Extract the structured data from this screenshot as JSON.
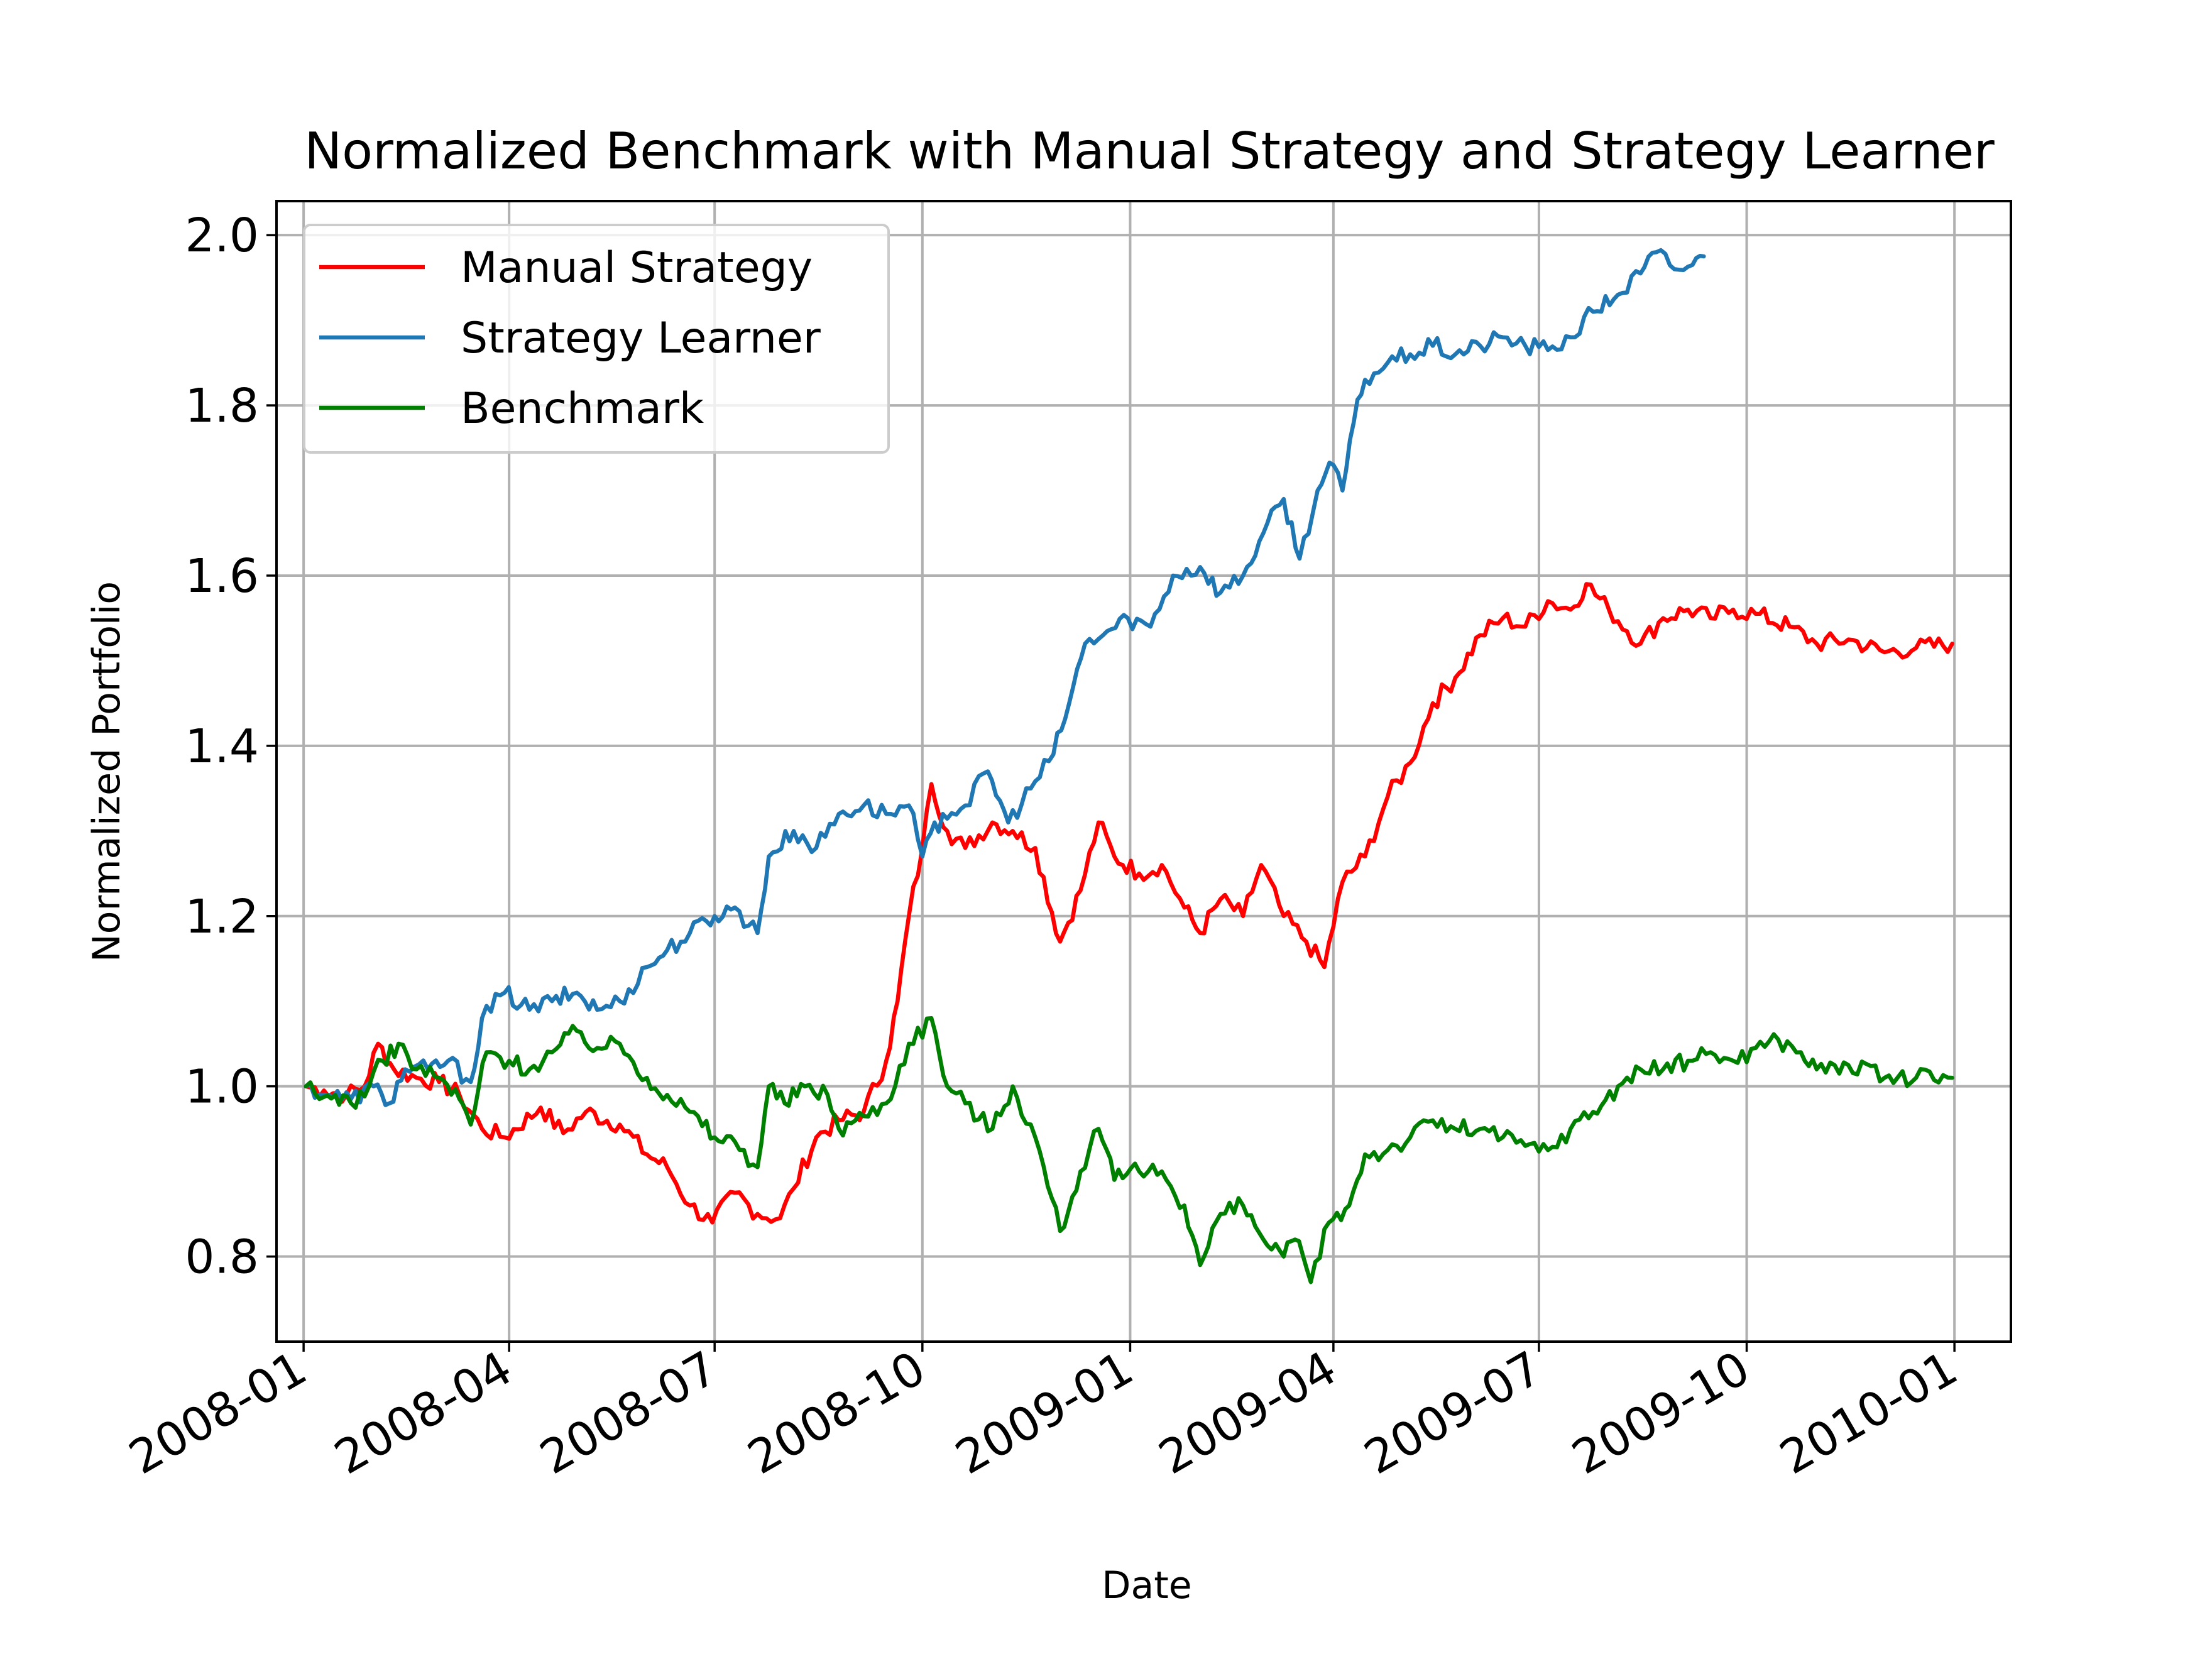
{
  "chart_data": {
    "type": "line",
    "title": "Normalized Benchmark with Manual Strategy and Strategy Learner",
    "xlabel": "Date",
    "ylabel": "Normalized Portfolio",
    "xlim": [
      "2007-12-20",
      "2010-01-26"
    ],
    "ylim": [
      0.7,
      2.04
    ],
    "x_ticks": [
      "2008-01",
      "2008-04",
      "2008-07",
      "2008-10",
      "2009-01",
      "2009-04",
      "2009-07",
      "2009-10",
      "2010-01"
    ],
    "y_ticks": [
      "0.8",
      "1.0",
      "1.2",
      "1.4",
      "1.6",
      "1.8",
      "2.0"
    ],
    "grid": true,
    "legend_position": "top-left",
    "series": [
      {
        "name": "Manual Strategy",
        "color": "#ff0000",
        "points": [
          [
            "2008-01-02",
            1.0
          ],
          [
            "2008-01-10",
            0.995
          ],
          [
            "2008-01-20",
            0.99
          ],
          [
            "2008-01-28",
            1.0
          ],
          [
            "2008-02-03",
            1.05
          ],
          [
            "2008-02-10",
            1.02
          ],
          [
            "2008-02-20",
            1.01
          ],
          [
            "2008-03-01",
            1.005
          ],
          [
            "2008-03-10",
            0.99
          ],
          [
            "2008-03-20",
            0.95
          ],
          [
            "2008-03-30",
            0.94
          ],
          [
            "2008-04-15",
            0.975
          ],
          [
            "2008-04-25",
            0.945
          ],
          [
            "2008-05-05",
            0.97
          ],
          [
            "2008-05-20",
            0.955
          ],
          [
            "2008-06-01",
            0.92
          ],
          [
            "2008-06-10",
            0.905
          ],
          [
            "2008-06-20",
            0.86
          ],
          [
            "2008-06-30",
            0.84
          ],
          [
            "2008-07-10",
            0.875
          ],
          [
            "2008-07-20",
            0.85
          ],
          [
            "2008-07-30",
            0.845
          ],
          [
            "2008-08-05",
            0.88
          ],
          [
            "2008-08-15",
            0.94
          ],
          [
            "2008-08-25",
            0.96
          ],
          [
            "2008-09-05",
            0.97
          ],
          [
            "2008-09-15",
            1.03
          ],
          [
            "2008-09-20",
            1.1
          ],
          [
            "2008-09-25",
            1.2
          ],
          [
            "2008-10-01",
            1.28
          ],
          [
            "2008-10-05",
            1.355
          ],
          [
            "2008-10-12",
            1.3
          ],
          [
            "2008-10-20",
            1.28
          ],
          [
            "2008-11-01",
            1.31
          ],
          [
            "2008-11-10",
            1.3
          ],
          [
            "2008-11-20",
            1.28
          ],
          [
            "2008-12-01",
            1.17
          ],
          [
            "2008-12-10",
            1.23
          ],
          [
            "2008-12-18",
            1.31
          ],
          [
            "2008-12-25",
            1.27
          ],
          [
            "2009-01-05",
            1.25
          ],
          [
            "2009-01-15",
            1.26
          ],
          [
            "2009-01-25",
            1.21
          ],
          [
            "2009-02-01",
            1.18
          ],
          [
            "2009-02-10",
            1.22
          ],
          [
            "2009-02-20",
            1.2
          ],
          [
            "2009-02-28",
            1.26
          ],
          [
            "2009-03-10",
            1.2
          ],
          [
            "2009-03-20",
            1.17
          ],
          [
            "2009-03-28",
            1.14
          ],
          [
            "2009-04-05",
            1.24
          ],
          [
            "2009-04-15",
            1.27
          ],
          [
            "2009-04-25",
            1.34
          ],
          [
            "2009-05-05",
            1.38
          ],
          [
            "2009-05-15",
            1.45
          ],
          [
            "2009-05-25",
            1.48
          ],
          [
            "2009-06-05",
            1.53
          ],
          [
            "2009-06-15",
            1.55
          ],
          [
            "2009-06-25",
            1.54
          ],
          [
            "2009-07-05",
            1.57
          ],
          [
            "2009-07-15",
            1.56
          ],
          [
            "2009-07-22",
            1.59
          ],
          [
            "2009-08-01",
            1.56
          ],
          [
            "2009-08-15",
            1.52
          ],
          [
            "2009-08-25",
            1.55
          ],
          [
            "2009-09-05",
            1.56
          ],
          [
            "2009-09-15",
            1.55
          ],
          [
            "2009-09-25",
            1.56
          ],
          [
            "2009-10-05",
            1.555
          ],
          [
            "2009-10-20",
            1.54
          ],
          [
            "2009-11-01",
            1.52
          ],
          [
            "2009-11-15",
            1.525
          ],
          [
            "2009-12-01",
            1.51
          ],
          [
            "2009-12-15",
            1.515
          ],
          [
            "2009-12-31",
            1.52
          ]
        ]
      },
      {
        "name": "Strategy Learner",
        "color": "#1f77b4",
        "points": [
          [
            "2008-01-02",
            1.0
          ],
          [
            "2008-01-12",
            0.99
          ],
          [
            "2008-01-22",
            0.985
          ],
          [
            "2008-02-01",
            1.0
          ],
          [
            "2008-02-08",
            0.98
          ],
          [
            "2008-02-15",
            1.02
          ],
          [
            "2008-02-25",
            1.02
          ],
          [
            "2008-03-05",
            1.03
          ],
          [
            "2008-03-15",
            1.005
          ],
          [
            "2008-03-20",
            1.08
          ],
          [
            "2008-03-30",
            1.11
          ],
          [
            "2008-04-10",
            1.09
          ],
          [
            "2008-04-20",
            1.1
          ],
          [
            "2008-05-01",
            1.11
          ],
          [
            "2008-05-10",
            1.09
          ],
          [
            "2008-05-20",
            1.1
          ],
          [
            "2008-06-01",
            1.14
          ],
          [
            "2008-06-10",
            1.16
          ],
          [
            "2008-06-20",
            1.18
          ],
          [
            "2008-07-01",
            1.2
          ],
          [
            "2008-07-10",
            1.21
          ],
          [
            "2008-07-20",
            1.18
          ],
          [
            "2008-07-25",
            1.27
          ],
          [
            "2008-08-05",
            1.3
          ],
          [
            "2008-08-15",
            1.28
          ],
          [
            "2008-08-25",
            1.32
          ],
          [
            "2008-09-05",
            1.33
          ],
          [
            "2008-09-15",
            1.32
          ],
          [
            "2008-09-25",
            1.33
          ],
          [
            "2008-10-01",
            1.27
          ],
          [
            "2008-10-10",
            1.32
          ],
          [
            "2008-10-20",
            1.33
          ],
          [
            "2008-10-30",
            1.37
          ],
          [
            "2008-11-08",
            1.31
          ],
          [
            "2008-11-18",
            1.35
          ],
          [
            "2008-11-28",
            1.39
          ],
          [
            "2008-12-05",
            1.45
          ],
          [
            "2008-12-12",
            1.52
          ],
          [
            "2008-12-20",
            1.53
          ],
          [
            "2008-12-31",
            1.55
          ],
          [
            "2009-01-10",
            1.54
          ],
          [
            "2009-01-20",
            1.6
          ],
          [
            "2009-02-01",
            1.61
          ],
          [
            "2009-02-10",
            1.58
          ],
          [
            "2009-02-20",
            1.6
          ],
          [
            "2009-03-01",
            1.65
          ],
          [
            "2009-03-10",
            1.69
          ],
          [
            "2009-03-17",
            1.62
          ],
          [
            "2009-03-25",
            1.7
          ],
          [
            "2009-04-01",
            1.73
          ],
          [
            "2009-04-05",
            1.7
          ],
          [
            "2009-04-10",
            1.78
          ],
          [
            "2009-04-15",
            1.83
          ],
          [
            "2009-04-25",
            1.85
          ],
          [
            "2009-05-05",
            1.86
          ],
          [
            "2009-05-15",
            1.87
          ],
          [
            "2009-05-25",
            1.86
          ],
          [
            "2009-06-05",
            1.87
          ],
          [
            "2009-06-15",
            1.88
          ],
          [
            "2009-06-25",
            1.87
          ],
          [
            "2009-07-05",
            1.865
          ],
          [
            "2009-07-15",
            1.88
          ],
          [
            "2009-07-25",
            1.91
          ],
          [
            "2009-08-05",
            1.93
          ],
          [
            "2009-08-15",
            1.955
          ],
          [
            "2009-08-22",
            1.98
          ],
          [
            "2009-08-30",
            1.96
          ],
          [
            "2009-09-07",
            1.965
          ],
          [
            "2009-09-12",
            1.975
          ]
        ]
      },
      {
        "name": "Benchmark",
        "color": "#008000",
        "points": [
          [
            "2008-01-02",
            1.0
          ],
          [
            "2008-01-08",
            0.985
          ],
          [
            "2008-01-15",
            0.99
          ],
          [
            "2008-01-22",
            0.98
          ],
          [
            "2008-01-30",
            1.0
          ],
          [
            "2008-02-05",
            1.03
          ],
          [
            "2008-02-12",
            1.05
          ],
          [
            "2008-02-20",
            1.02
          ],
          [
            "2008-03-01",
            1.01
          ],
          [
            "2008-03-10",
            0.985
          ],
          [
            "2008-03-15",
            0.955
          ],
          [
            "2008-03-22",
            1.04
          ],
          [
            "2008-04-01",
            1.03
          ],
          [
            "2008-04-10",
            1.02
          ],
          [
            "2008-04-20",
            1.04
          ],
          [
            "2008-05-01",
            1.065
          ],
          [
            "2008-05-10",
            1.045
          ],
          [
            "2008-05-20",
            1.05
          ],
          [
            "2008-06-01",
            1.01
          ],
          [
            "2008-06-10",
            0.99
          ],
          [
            "2008-06-20",
            0.97
          ],
          [
            "2008-07-01",
            0.94
          ],
          [
            "2008-07-10",
            0.935
          ],
          [
            "2008-07-20",
            0.905
          ],
          [
            "2008-07-25",
            1.0
          ],
          [
            "2008-08-01",
            0.98
          ],
          [
            "2008-08-10",
            1.0
          ],
          [
            "2008-08-20",
            0.99
          ],
          [
            "2008-08-25",
            0.95
          ],
          [
            "2008-09-05",
            0.965
          ],
          [
            "2008-09-15",
            0.98
          ],
          [
            "2008-09-25",
            1.05
          ],
          [
            "2008-10-05",
            1.08
          ],
          [
            "2008-10-12",
            1.0
          ],
          [
            "2008-10-20",
            0.98
          ],
          [
            "2008-11-01",
            0.95
          ],
          [
            "2008-11-10",
            1.0
          ],
          [
            "2008-11-20",
            0.94
          ],
          [
            "2008-12-01",
            0.83
          ],
          [
            "2008-12-10",
            0.9
          ],
          [
            "2008-12-18",
            0.95
          ],
          [
            "2008-12-25",
            0.89
          ],
          [
            "2009-01-05",
            0.9
          ],
          [
            "2009-01-15",
            0.9
          ],
          [
            "2009-01-25",
            0.86
          ],
          [
            "2009-02-01",
            0.79
          ],
          [
            "2009-02-10",
            0.85
          ],
          [
            "2009-02-20",
            0.86
          ],
          [
            "2009-03-01",
            0.82
          ],
          [
            "2009-03-10",
            0.8
          ],
          [
            "2009-03-15",
            0.82
          ],
          [
            "2009-03-22",
            0.77
          ],
          [
            "2009-03-30",
            0.84
          ],
          [
            "2009-04-08",
            0.86
          ],
          [
            "2009-04-15",
            0.92
          ],
          [
            "2009-04-25",
            0.925
          ],
          [
            "2009-05-05",
            0.94
          ],
          [
            "2009-05-15",
            0.96
          ],
          [
            "2009-05-25",
            0.95
          ],
          [
            "2009-06-05",
            0.95
          ],
          [
            "2009-06-15",
            0.94
          ],
          [
            "2009-06-25",
            0.93
          ],
          [
            "2009-07-05",
            0.925
          ],
          [
            "2009-07-15",
            0.95
          ],
          [
            "2009-07-25",
            0.97
          ],
          [
            "2009-08-05",
            1.0
          ],
          [
            "2009-08-15",
            1.02
          ],
          [
            "2009-08-25",
            1.02
          ],
          [
            "2009-09-05",
            1.03
          ],
          [
            "2009-09-15",
            1.04
          ],
          [
            "2009-09-25",
            1.03
          ],
          [
            "2009-10-05",
            1.045
          ],
          [
            "2009-10-15",
            1.055
          ],
          [
            "2009-10-25",
            1.04
          ],
          [
            "2009-11-01",
            1.02
          ],
          [
            "2009-11-15",
            1.025
          ],
          [
            "2009-12-01",
            1.01
          ],
          [
            "2009-12-15",
            1.01
          ],
          [
            "2009-12-31",
            1.01
          ]
        ]
      }
    ]
  }
}
